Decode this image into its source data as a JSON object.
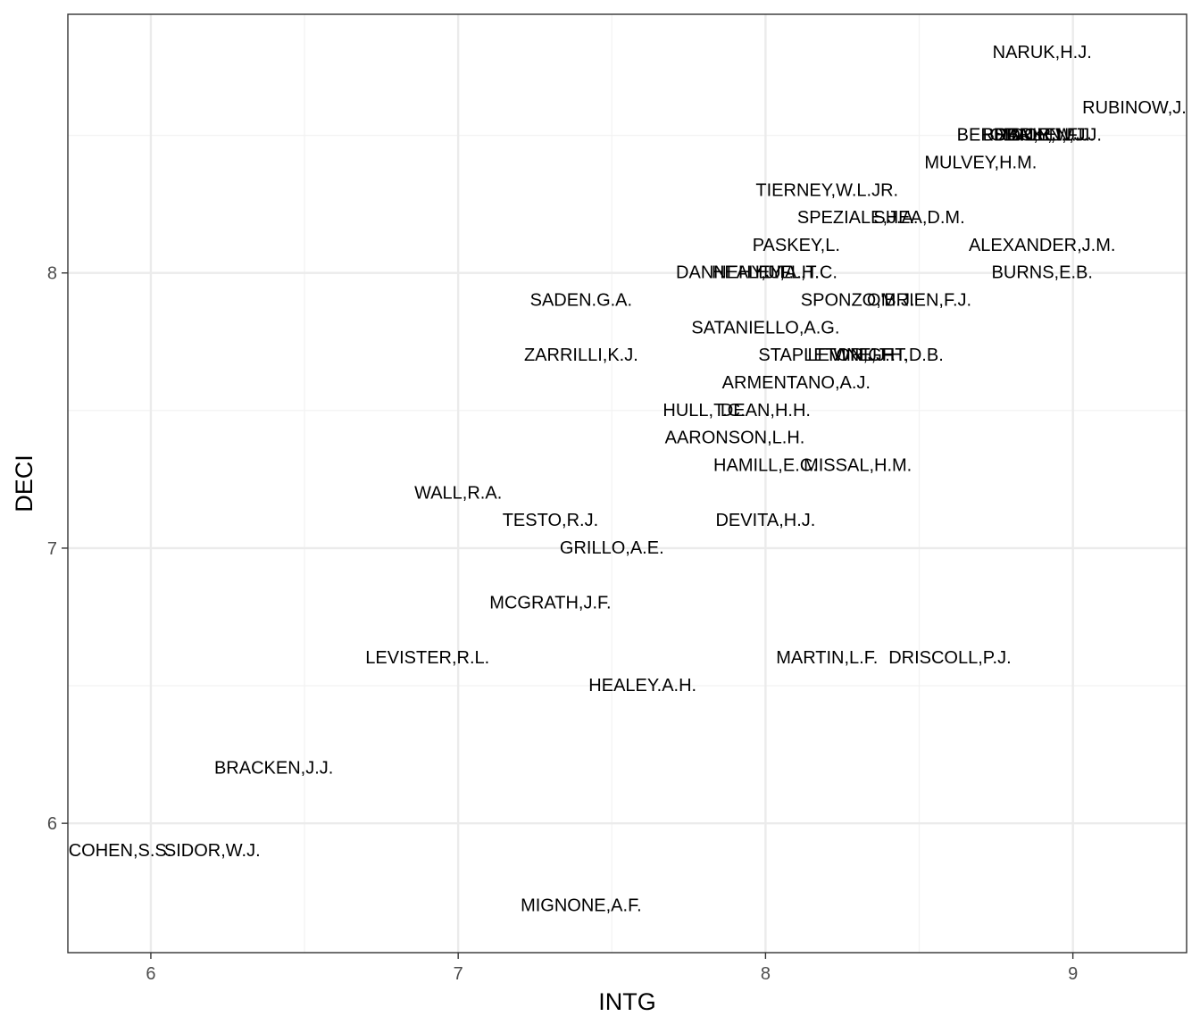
{
  "chart_data": {
    "type": "scatter",
    "title": "",
    "xlabel": "INTG",
    "ylabel": "DECI",
    "xlim": [
      5.73,
      9.37
    ],
    "ylim": [
      5.53,
      8.94
    ],
    "x_ticks": [
      6,
      7,
      8,
      9
    ],
    "y_ticks": [
      6,
      7,
      8
    ],
    "x_minor": [
      6.5,
      7.5,
      8.5
    ],
    "y_minor": [
      6.5,
      7.5,
      8.5
    ],
    "grid": true,
    "points": [
      {
        "label": "NARUK,H.J.",
        "x": 8.9,
        "y": 8.8
      },
      {
        "label": "RUBINOW,J.",
        "x": 9.2,
        "y": 8.6
      },
      {
        "label": "BERDON,R.I.",
        "x": 8.8,
        "y": 8.5
      },
      {
        "label": "SIDOR,W.J.",
        "x": 8.9,
        "y": 8.5
      },
      {
        "label": "DALY,J.J.",
        "x": 8.9,
        "y": 8.5
      },
      {
        "label": "BRACKEN,J.J.",
        "x": 8.9,
        "y": 8.5
      },
      {
        "label": "O'BRIEN,F.J.",
        "x": 8.9,
        "y": 8.5
      },
      {
        "label": "MULVEY,H.M.",
        "x": 8.7,
        "y": 8.4
      },
      {
        "label": "TIERNEY,W.L.JR.",
        "x": 8.2,
        "y": 8.3
      },
      {
        "label": "SPEZIALE,J.A.",
        "x": 8.3,
        "y": 8.2
      },
      {
        "label": "SHEA,D.M.",
        "x": 8.5,
        "y": 8.2
      },
      {
        "label": "PASKEY,L.",
        "x": 8.1,
        "y": 8.1
      },
      {
        "label": "ALEXANDER,J.M.",
        "x": 8.9,
        "y": 8.1
      },
      {
        "label": "DANNEHY,J.F.",
        "x": 7.9,
        "y": 8.0
      },
      {
        "label": "HEALEY,A.H.",
        "x": 8.0,
        "y": 8.0
      },
      {
        "label": "HULL,T.C.",
        "x": 8.1,
        "y": 8.0
      },
      {
        "label": "BURNS,E.B.",
        "x": 8.9,
        "y": 8.0
      },
      {
        "label": "SADEN.G.A.",
        "x": 7.4,
        "y": 7.9
      },
      {
        "label": "SPONZO,M.J.",
        "x": 8.3,
        "y": 7.9
      },
      {
        "label": "O'BRIEN,F.J.",
        "x": 8.5,
        "y": 7.9
      },
      {
        "label": "SATANIELLO,A.G.",
        "x": 8.0,
        "y": 7.8
      },
      {
        "label": "ZARRILLI,K.J.",
        "x": 7.4,
        "y": 7.7
      },
      {
        "label": "STAPLETON,J.F.",
        "x": 8.2,
        "y": 7.7
      },
      {
        "label": "LEVINE,J.H.",
        "x": 8.3,
        "y": 7.7
      },
      {
        "label": "WRIGHT,D.B.",
        "x": 8.4,
        "y": 7.7
      },
      {
        "label": "ARMENTANO,A.J.",
        "x": 8.1,
        "y": 7.6
      },
      {
        "label": "HULL,T.C.",
        "x": 7.8,
        "y": 7.5
      },
      {
        "label": "DEAN,H.H.",
        "x": 8.0,
        "y": 7.5
      },
      {
        "label": "AARONSON,L.H.",
        "x": 7.9,
        "y": 7.4
      },
      {
        "label": "HAMILL,E.C.",
        "x": 8.0,
        "y": 7.3
      },
      {
        "label": "MISSAL,H.M.",
        "x": 8.3,
        "y": 7.3
      },
      {
        "label": "WALL,R.A.",
        "x": 7.0,
        "y": 7.2
      },
      {
        "label": "TESTO,R.J.",
        "x": 7.3,
        "y": 7.1
      },
      {
        "label": "DEVITA,H.J.",
        "x": 8.0,
        "y": 7.1
      },
      {
        "label": "GRILLO,A.E.",
        "x": 7.5,
        "y": 7.0
      },
      {
        "label": "MCGRATH,J.F.",
        "x": 7.3,
        "y": 6.8
      },
      {
        "label": "LEVISTER,R.L.",
        "x": 6.9,
        "y": 6.6
      },
      {
        "label": "MARTIN,L.F.",
        "x": 8.2,
        "y": 6.6
      },
      {
        "label": "DRISCOLL,P.J.",
        "x": 8.6,
        "y": 6.6
      },
      {
        "label": "HEALEY.A.H.",
        "x": 7.6,
        "y": 6.5
      },
      {
        "label": "BRACKEN,J.J.",
        "x": 6.4,
        "y": 6.2
      },
      {
        "label": "COHEN,S.S.",
        "x": 5.9,
        "y": 5.9
      },
      {
        "label": "SIDOR,W.J.",
        "x": 6.2,
        "y": 5.9
      },
      {
        "label": "MIGNONE,A.F.",
        "x": 7.4,
        "y": 5.7
      }
    ]
  }
}
